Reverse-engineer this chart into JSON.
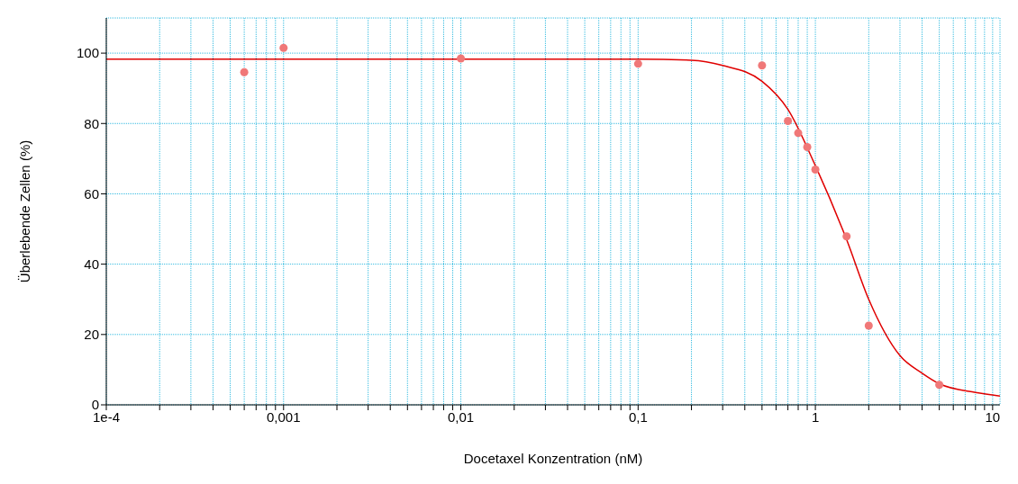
{
  "chart_data": {
    "type": "scatter",
    "xlabel": "Docetaxel Konzentration (nM)",
    "ylabel": "Überlebende Zellen (%)",
    "log": "x",
    "grid": true,
    "xlim": [
      0.0001,
      11
    ],
    "ylim": [
      0,
      110
    ],
    "xticks": [
      {
        "value": 0.0001,
        "label": "1e-4"
      },
      {
        "value": 0.0002,
        "label": null
      },
      {
        "value": 0.0003,
        "label": null
      },
      {
        "value": 0.0004,
        "label": null
      },
      {
        "value": 0.0005,
        "label": null
      },
      {
        "value": 0.0006,
        "label": null
      },
      {
        "value": 0.0007,
        "label": null
      },
      {
        "value": 0.0008,
        "label": null
      },
      {
        "value": 0.0009,
        "label": null
      },
      {
        "value": 0.001,
        "label": "0,001"
      },
      {
        "value": 0.002,
        "label": null
      },
      {
        "value": 0.003,
        "label": null
      },
      {
        "value": 0.004,
        "label": null
      },
      {
        "value": 0.005,
        "label": null
      },
      {
        "value": 0.006,
        "label": null
      },
      {
        "value": 0.007,
        "label": null
      },
      {
        "value": 0.008,
        "label": null
      },
      {
        "value": 0.009,
        "label": null
      },
      {
        "value": 0.01,
        "label": "0,01"
      },
      {
        "value": 0.02,
        "label": null
      },
      {
        "value": 0.03,
        "label": null
      },
      {
        "value": 0.04,
        "label": null
      },
      {
        "value": 0.05,
        "label": null
      },
      {
        "value": 0.06,
        "label": null
      },
      {
        "value": 0.07,
        "label": null
      },
      {
        "value": 0.08,
        "label": null
      },
      {
        "value": 0.09,
        "label": null
      },
      {
        "value": 0.1,
        "label": "0,1"
      },
      {
        "value": 0.2,
        "label": null
      },
      {
        "value": 0.3,
        "label": null
      },
      {
        "value": 0.4,
        "label": null
      },
      {
        "value": 0.5,
        "label": null
      },
      {
        "value": 0.6,
        "label": null
      },
      {
        "value": 0.7,
        "label": null
      },
      {
        "value": 0.8,
        "label": null
      },
      {
        "value": 0.9,
        "label": null
      },
      {
        "value": 1,
        "label": "1"
      },
      {
        "value": 2,
        "label": null
      },
      {
        "value": 3,
        "label": null
      },
      {
        "value": 4,
        "label": null
      },
      {
        "value": 5,
        "label": null
      },
      {
        "value": 6,
        "label": null
      },
      {
        "value": 7,
        "label": null
      },
      {
        "value": 8,
        "label": null
      },
      {
        "value": 9,
        "label": null
      },
      {
        "value": 10,
        "label": "10"
      }
    ],
    "yticks": [
      0,
      20,
      40,
      60,
      80,
      100
    ],
    "series": [
      {
        "marker": "circle",
        "color": "#f07878",
        "x": [
          0.0006,
          0.001,
          0.01,
          0.1,
          0.5,
          0.7,
          0.8,
          0.9,
          1,
          1.5,
          2,
          5
        ],
        "values": [
          94.6,
          101.5,
          98.5,
          97,
          96.5,
          80.7,
          77.3,
          73.3,
          66.9,
          47.9,
          22.5,
          5.7
        ]
      },
      {
        "type": "line",
        "marker": "none",
        "color": "#e00000",
        "x": [
          0.0001,
          0.001,
          0.01,
          0.1,
          0.2,
          0.3,
          0.5,
          0.7,
          1,
          1.5,
          2,
          3,
          4,
          5,
          8,
          11
        ],
        "values": [
          98.3,
          98.3,
          98.3,
          98.3,
          98,
          96.5,
          92,
          84,
          68,
          47,
          30,
          14,
          9,
          6,
          3.5,
          2.5
        ]
      }
    ]
  }
}
